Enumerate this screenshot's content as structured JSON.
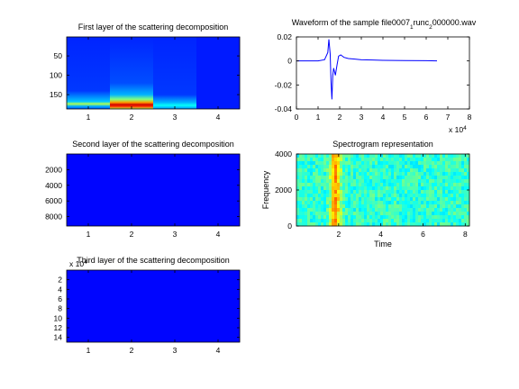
{
  "chart_data": [
    {
      "type": "heatmap",
      "title": "First layer of the scattering decomposition",
      "xlabel": "",
      "ylabel": "",
      "xlim": [
        0.5,
        4.5
      ],
      "ylim": [
        187,
        1
      ],
      "xticks": [
        1,
        2,
        3,
        4
      ],
      "yticks": [
        50,
        100,
        150
      ],
      "colormap": "jet",
      "columns": [
        {
          "x": 1,
          "profile": [
            [
              1,
              0.16
            ],
            [
              140,
              0.18
            ],
            [
              168,
              0.32
            ],
            [
              174,
              0.55
            ],
            [
              180,
              0.3
            ],
            [
              187,
              0.2
            ]
          ]
        },
        {
          "x": 2,
          "profile": [
            [
              1,
              0.16
            ],
            [
              120,
              0.2
            ],
            [
              150,
              0.3
            ],
            [
              162,
              0.5
            ],
            [
              170,
              0.72
            ],
            [
              176,
              0.92
            ],
            [
              181,
              0.82
            ],
            [
              187,
              0.55
            ]
          ]
        },
        {
          "x": 3,
          "profile": [
            [
              1,
              0.16
            ],
            [
              150,
              0.18
            ],
            [
              170,
              0.3
            ],
            [
              178,
              0.38
            ],
            [
              187,
              0.26
            ]
          ]
        },
        {
          "x": 4,
          "profile": [
            [
              1,
              0.15
            ],
            [
              187,
              0.15
            ]
          ]
        }
      ]
    },
    {
      "type": "line",
      "title": "Waveform of the sample file0007",
      "title_sub1": "1",
      "title_mid": "runc",
      "title_sub2": "2",
      "title_end": "000000.wav",
      "xlim": [
        0,
        80000
      ],
      "ylim": [
        -0.04,
        0.02
      ],
      "xticks": [
        0,
        10000,
        20000,
        30000,
        40000,
        50000,
        60000,
        70000,
        80000
      ],
      "xtick_labels": [
        "0",
        "1",
        "2",
        "3",
        "4",
        "5",
        "6",
        "7",
        "8"
      ],
      "yticks": [
        -0.04,
        -0.02,
        0,
        0.02
      ],
      "ytick_labels": [
        "-0.04",
        "-0.02",
        "0",
        "0.02"
      ],
      "x_multiplier_base": "x 10",
      "x_multiplier_exp": "4",
      "color": "#0000ff",
      "series": [
        {
          "x": [
            0,
            10000,
            13000,
            14500,
            15000,
            15600,
            16000,
            16400,
            16800,
            17200,
            18000,
            18800,
            19500,
            20500,
            22000,
            24000,
            27000,
            30000,
            35000,
            40000,
            50000,
            60000,
            65000
          ],
          "y": [
            0,
            0,
            0.001,
            0.007,
            0.018,
            0.006,
            -0.018,
            -0.032,
            -0.012,
            -0.006,
            -0.012,
            -0.003,
            0.004,
            0.005,
            0.003,
            0.002,
            0.0015,
            0.001,
            0.0008,
            0.0005,
            0.0003,
            0.0002,
            0
          ]
        }
      ]
    },
    {
      "type": "heatmap",
      "title": "Second layer of the scattering decomposition",
      "xlim": [
        0.5,
        4.5
      ],
      "ylim": [
        9200,
        0
      ],
      "xticks": [
        1,
        2,
        3,
        4
      ],
      "yticks": [
        2000,
        4000,
        6000,
        8000
      ],
      "colormap": "jet",
      "columns": [
        {
          "x": 1,
          "profile": [
            [
              0,
              0.13
            ],
            [
              9200,
              0.13
            ]
          ]
        },
        {
          "x": 2,
          "profile": [
            [
              0,
              0.13
            ],
            [
              9200,
              0.13
            ]
          ]
        },
        {
          "x": 3,
          "profile": [
            [
              0,
              0.13
            ],
            [
              9200,
              0.13
            ]
          ]
        },
        {
          "x": 4,
          "profile": [
            [
              0,
              0.13
            ],
            [
              9200,
              0.13
            ]
          ]
        }
      ]
    },
    {
      "type": "heatmap",
      "title": "Spectrogram representation",
      "xlabel": "Time",
      "ylabel": "Frequency",
      "xlim": [
        0,
        8.2
      ],
      "ylim": [
        0,
        4000
      ],
      "xticks": [
        2,
        4,
        6,
        8
      ],
      "yticks": [
        0,
        2000,
        4000
      ],
      "colormap": "jet",
      "base_level": 0.42,
      "events": [
        {
          "time": 1.85,
          "width": 0.35,
          "level": 0.72
        }
      ]
    },
    {
      "type": "heatmap",
      "title": "Third layer of the scattering decomposition",
      "xlim": [
        0.5,
        4.5
      ],
      "ylim": [
        150000,
        0
      ],
      "xticks": [
        1,
        2,
        3,
        4
      ],
      "yticks": [
        20000,
        40000,
        60000,
        80000,
        100000,
        120000,
        140000
      ],
      "ytick_labels": [
        "2",
        "4",
        "6",
        "8",
        "10",
        "12",
        "14"
      ],
      "y_multiplier_base": "x 10",
      "y_multiplier_exp": "4",
      "colormap": "jet",
      "columns": [
        {
          "x": 1,
          "profile": [
            [
              0,
              0.13
            ],
            [
              150000,
              0.13
            ]
          ]
        },
        {
          "x": 2,
          "profile": [
            [
              0,
              0.13
            ],
            [
              150000,
              0.13
            ]
          ]
        },
        {
          "x": 3,
          "profile": [
            [
              0,
              0.13
            ],
            [
              150000,
              0.13
            ]
          ]
        },
        {
          "x": 4,
          "profile": [
            [
              0,
              0.13
            ],
            [
              150000,
              0.13
            ]
          ]
        }
      ]
    }
  ]
}
